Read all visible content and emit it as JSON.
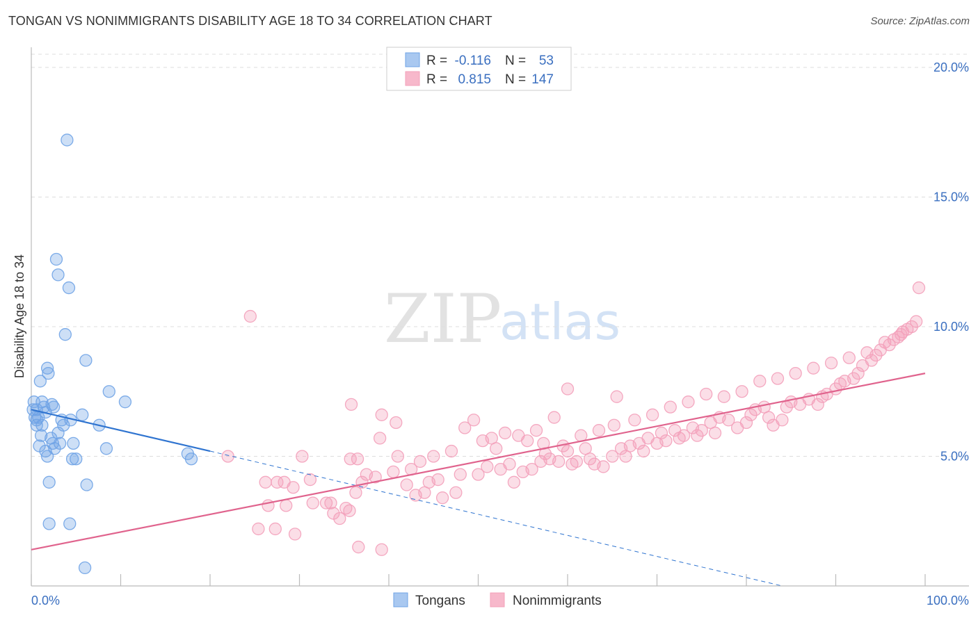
{
  "title": "TONGAN VS NONIMMIGRANTS DISABILITY AGE 18 TO 34 CORRELATION CHART",
  "source": "Source: ZipAtlas.com",
  "watermark": {
    "zip": "ZIP",
    "atlas": "atlas"
  },
  "legend": {
    "rows": [
      {
        "r_label": "R =",
        "r_value": "-0.116",
        "n_label": "N =",
        "n_value": "53",
        "color": "#a9c8f0"
      },
      {
        "r_label": "R =",
        "r_value": "0.815",
        "n_label": "N =",
        "n_value": "147",
        "color": "#f7b8cb"
      }
    ]
  },
  "bottom_legend": [
    {
      "label": "Tongans",
      "color": "#a9c8f0"
    },
    {
      "label": "Nonimmigrants",
      "color": "#f7b8cb"
    }
  ],
  "chart_data": {
    "type": "scatter",
    "title": "TONGAN VS NONIMMIGRANTS DISABILITY AGE 18 TO 34 CORRELATION CHART",
    "xlabel": "",
    "ylabel": "Disability Age 18 to 34",
    "xlim": [
      0,
      100
    ],
    "ylim": [
      0,
      20.5
    ],
    "x_tick_labels": [
      "0.0%",
      "100.0%"
    ],
    "y_ticks": [
      5,
      10,
      15,
      20
    ],
    "y_tick_labels": [
      "5.0%",
      "10.0%",
      "15.0%",
      "20.0%"
    ],
    "grid": true,
    "legend_position": "top-center",
    "series": [
      {
        "name": "Tongans",
        "color": "#6fa3e6",
        "line_color": "#2f74d0",
        "trend": {
          "x": [
            0,
            20
          ],
          "y": [
            6.8,
            5.2
          ],
          "dashed_extension_to": [
            84,
            0.0
          ]
        },
        "points": [
          [
            4,
            17.2
          ],
          [
            2.8,
            12.6
          ],
          [
            3,
            12.0
          ],
          [
            4.2,
            11.5
          ],
          [
            3.8,
            9.7
          ],
          [
            1.8,
            8.4
          ],
          [
            1.9,
            8.2
          ],
          [
            6.1,
            8.7
          ],
          [
            1,
            7.9
          ],
          [
            8.7,
            7.5
          ],
          [
            10.5,
            7.1
          ],
          [
            0.3,
            7.1
          ],
          [
            1.2,
            7.1
          ],
          [
            2.3,
            7.0
          ],
          [
            1.4,
            6.9
          ],
          [
            2.5,
            6.9
          ],
          [
            0.6,
            6.8
          ],
          [
            0.2,
            6.8
          ],
          [
            1.6,
            6.7
          ],
          [
            5.7,
            6.6
          ],
          [
            0.4,
            6.5
          ],
          [
            0.8,
            6.5
          ],
          [
            0.6,
            6.4
          ],
          [
            3.4,
            6.4
          ],
          [
            4.4,
            6.4
          ],
          [
            1.2,
            6.2
          ],
          [
            3.6,
            6.2
          ],
          [
            0.6,
            6.2
          ],
          [
            7.6,
            6.2
          ],
          [
            1.1,
            5.8
          ],
          [
            2.2,
            5.7
          ],
          [
            3,
            5.9
          ],
          [
            2.4,
            5.5
          ],
          [
            3.2,
            5.5
          ],
          [
            4.7,
            5.5
          ],
          [
            0.9,
            5.4
          ],
          [
            2.6,
            5.3
          ],
          [
            8.4,
            5.3
          ],
          [
            1.6,
            5.2
          ],
          [
            1.8,
            5.0
          ],
          [
            4.6,
            4.9
          ],
          [
            5,
            4.9
          ],
          [
            17.5,
            5.1
          ],
          [
            17.9,
            4.9
          ],
          [
            2,
            4.0
          ],
          [
            6.2,
            3.9
          ],
          [
            2,
            2.4
          ],
          [
            4.3,
            2.4
          ],
          [
            6,
            0.7
          ]
        ]
      },
      {
        "name": "Nonimmigrants",
        "color": "#f3a0ba",
        "line_color": "#e0638d",
        "trend": {
          "x": [
            0,
            100
          ],
          "y": [
            1.4,
            8.2
          ]
        },
        "points": [
          [
            24.5,
            10.4
          ],
          [
            22,
            5.0
          ],
          [
            35.8,
            7.0
          ],
          [
            39.2,
            6.6
          ],
          [
            40.8,
            6.3
          ],
          [
            39,
            5.7
          ],
          [
            41,
            5.0
          ],
          [
            35.7,
            4.9
          ],
          [
            36.5,
            4.9
          ],
          [
            30.3,
            5.0
          ],
          [
            26.2,
            4.0
          ],
          [
            27.5,
            4.0
          ],
          [
            28.3,
            4.0
          ],
          [
            31.2,
            4.1
          ],
          [
            37.5,
            4.3
          ],
          [
            36.3,
            3.6
          ],
          [
            29.3,
            3.8
          ],
          [
            26.5,
            3.1
          ],
          [
            28.5,
            3.1
          ],
          [
            31.5,
            3.2
          ],
          [
            33,
            3.2
          ],
          [
            33.5,
            3.2
          ],
          [
            35.2,
            3.0
          ],
          [
            33.8,
            2.8
          ],
          [
            35.6,
            2.9
          ],
          [
            34.5,
            2.6
          ],
          [
            25.4,
            2.2
          ],
          [
            27.3,
            2.2
          ],
          [
            29.5,
            2.0
          ],
          [
            36.6,
            1.5
          ],
          [
            39.2,
            1.4
          ],
          [
            43,
            3.5
          ],
          [
            44,
            3.6
          ],
          [
            46,
            3.4
          ],
          [
            47.5,
            3.6
          ],
          [
            42,
            3.9
          ],
          [
            44.5,
            4.0
          ],
          [
            45.5,
            4.1
          ],
          [
            48,
            4.3
          ],
          [
            50,
            4.3
          ],
          [
            51,
            4.6
          ],
          [
            52.5,
            4.5
          ],
          [
            53.5,
            4.7
          ],
          [
            54,
            4.0
          ],
          [
            55,
            4.4
          ],
          [
            56,
            4.5
          ],
          [
            57,
            4.8
          ],
          [
            57.5,
            5.1
          ],
          [
            58,
            4.9
          ],
          [
            59,
            4.8
          ],
          [
            60,
            5.2
          ],
          [
            60.5,
            4.7
          ],
          [
            61,
            4.8
          ],
          [
            62,
            5.3
          ],
          [
            62.5,
            4.9
          ],
          [
            63,
            4.7
          ],
          [
            64,
            4.6
          ],
          [
            65,
            5.0
          ],
          [
            66,
            5.3
          ],
          [
            66.5,
            5.0
          ],
          [
            67,
            5.4
          ],
          [
            68,
            5.5
          ],
          [
            68.5,
            5.2
          ],
          [
            69,
            5.7
          ],
          [
            70,
            5.5
          ],
          [
            70.5,
            5.9
          ],
          [
            71,
            5.6
          ],
          [
            72,
            6.0
          ],
          [
            72.5,
            5.7
          ],
          [
            73,
            5.8
          ],
          [
            74,
            6.1
          ],
          [
            74.5,
            5.8
          ],
          [
            75,
            6.0
          ],
          [
            76,
            6.3
          ],
          [
            76.5,
            5.9
          ],
          [
            77,
            6.5
          ],
          [
            78,
            6.4
          ],
          [
            79,
            6.1
          ],
          [
            80,
            6.3
          ],
          [
            80.5,
            6.6
          ],
          [
            81,
            6.8
          ],
          [
            82,
            6.9
          ],
          [
            82.5,
            6.5
          ],
          [
            83,
            6.2
          ],
          [
            84,
            6.4
          ],
          [
            84.5,
            6.9
          ],
          [
            85,
            7.1
          ],
          [
            86,
            7.0
          ],
          [
            87,
            7.2
          ],
          [
            88,
            7.0
          ],
          [
            88.5,
            7.3
          ],
          [
            89,
            7.4
          ],
          [
            90,
            7.6
          ],
          [
            90.5,
            7.8
          ],
          [
            91,
            7.9
          ],
          [
            92,
            8.0
          ],
          [
            92.5,
            8.2
          ],
          [
            93,
            8.5
          ],
          [
            94,
            8.7
          ],
          [
            94.5,
            8.9
          ],
          [
            95,
            9.1
          ],
          [
            96,
            9.3
          ],
          [
            96.5,
            9.5
          ],
          [
            97,
            9.6
          ],
          [
            97.5,
            9.8
          ],
          [
            98,
            9.9
          ],
          [
            98.5,
            10.0
          ],
          [
            99,
            10.2
          ],
          [
            99.3,
            11.5
          ],
          [
            60,
            7.6
          ],
          [
            65.5,
            7.3
          ],
          [
            58.5,
            6.5
          ],
          [
            56.5,
            6.0
          ],
          [
            54.5,
            5.8
          ],
          [
            53,
            5.9
          ],
          [
            51.5,
            5.7
          ],
          [
            49.5,
            6.4
          ],
          [
            48.5,
            6.1
          ],
          [
            47,
            5.2
          ],
          [
            45,
            5.0
          ],
          [
            43.5,
            4.8
          ],
          [
            42.5,
            4.5
          ],
          [
            50.5,
            5.6
          ],
          [
            52,
            5.3
          ],
          [
            55.5,
            5.6
          ],
          [
            57.3,
            5.5
          ],
          [
            59.5,
            5.4
          ],
          [
            61.5,
            5.8
          ],
          [
            63.5,
            6.0
          ],
          [
            65.2,
            6.2
          ],
          [
            67.5,
            6.4
          ],
          [
            69.5,
            6.6
          ],
          [
            71.5,
            6.9
          ],
          [
            73.5,
            7.1
          ],
          [
            75.5,
            7.4
          ],
          [
            77.5,
            7.3
          ],
          [
            79.5,
            7.5
          ],
          [
            81.5,
            7.9
          ],
          [
            83.5,
            8.0
          ],
          [
            85.5,
            8.2
          ],
          [
            87.5,
            8.4
          ],
          [
            89.5,
            8.6
          ],
          [
            91.5,
            8.8
          ],
          [
            93.5,
            9.0
          ],
          [
            95.5,
            9.4
          ],
          [
            97.3,
            9.7
          ],
          [
            40.5,
            4.4
          ],
          [
            38.5,
            4.2
          ],
          [
            37,
            4.0
          ]
        ]
      }
    ]
  }
}
